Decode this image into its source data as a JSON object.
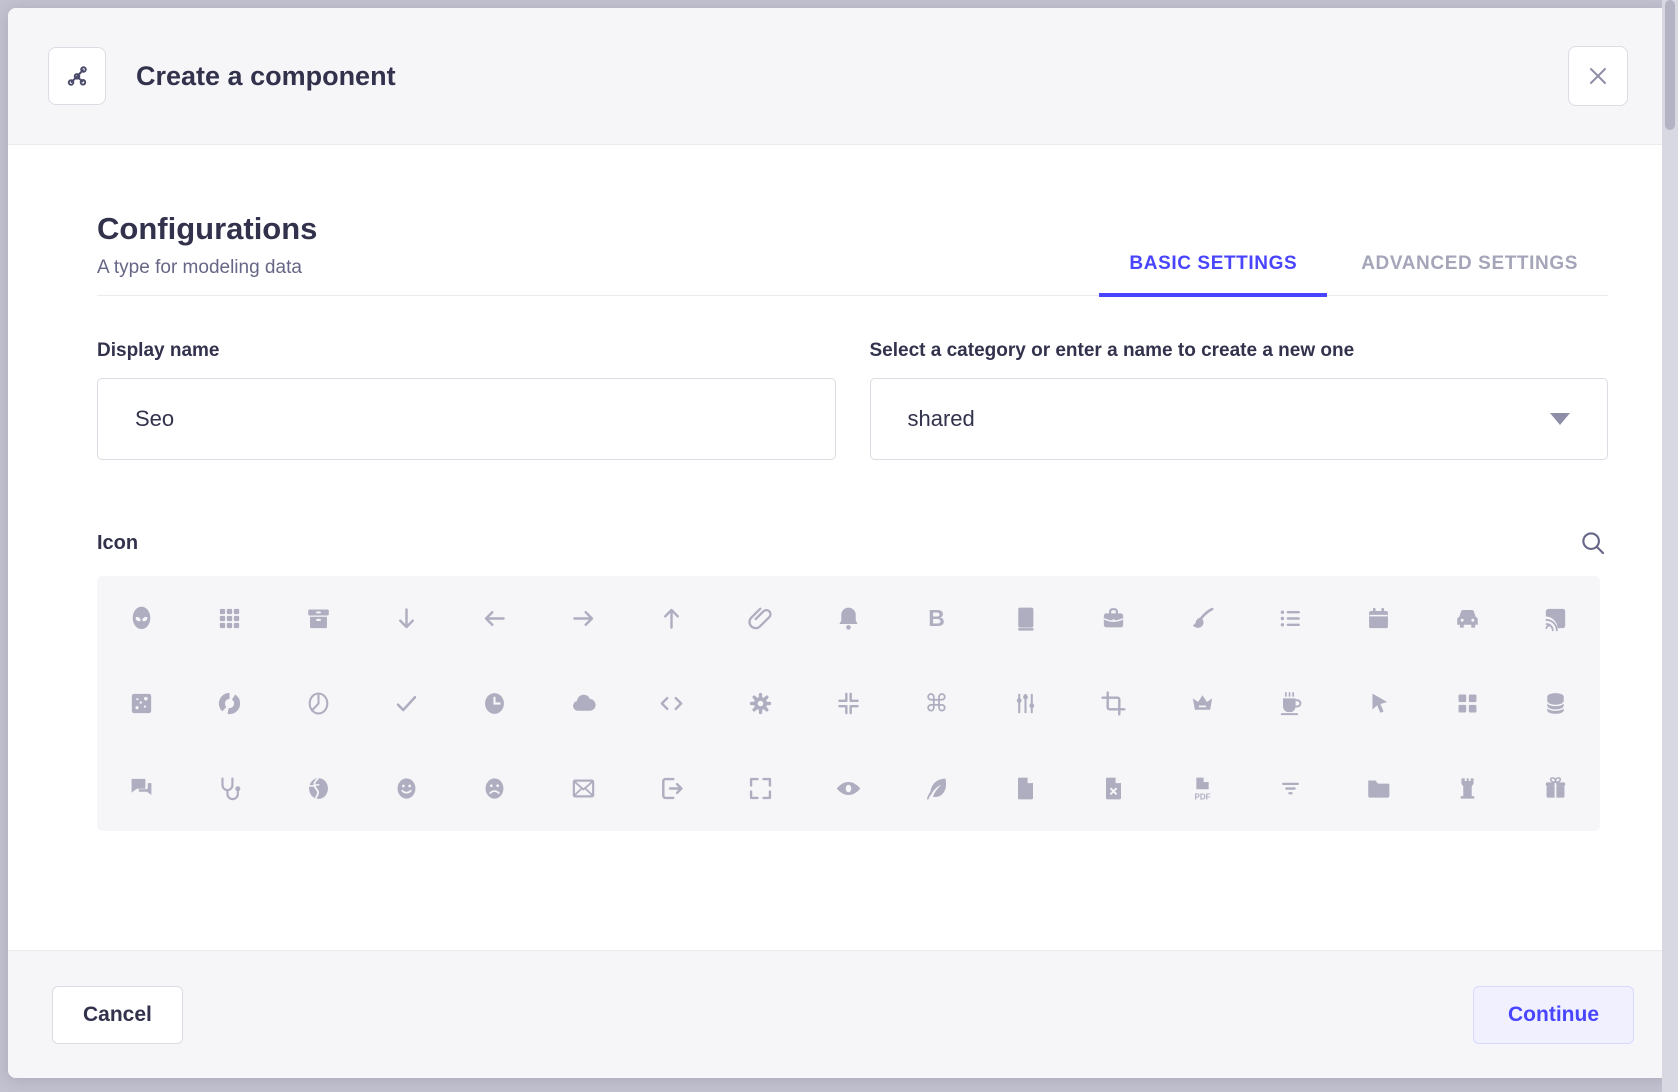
{
  "colors": {
    "primary": "#4945ff",
    "text_dark": "#32324d",
    "text_muted": "#666687",
    "tab_inactive": "#a5a5ba",
    "icon_gray": "#aeaec0",
    "panel_bg": "#f6f6f9",
    "border": "#dcdce4",
    "continue_bg": "#f0f0ff",
    "continue_border": "#d9d8ff"
  },
  "modal": {
    "header": {
      "title": "Create a component",
      "icon": "component-icon",
      "close_icon": "close-icon"
    },
    "section": {
      "title": "Configurations",
      "subtitle": "A type for modeling data"
    },
    "tabs": [
      {
        "label": "BASIC SETTINGS",
        "active": true
      },
      {
        "label": "ADVANCED SETTINGS",
        "active": false
      }
    ],
    "form": {
      "display_name": {
        "label": "Display name",
        "value": "Seo"
      },
      "category": {
        "label": "Select a category or enter a name to create a new one",
        "value": "shared"
      }
    },
    "icon_picker": {
      "label": "Icon",
      "search_icon": "search-icon",
      "rows": [
        [
          "alien",
          "apps",
          "archive",
          "arrow-down",
          "arrow-left",
          "arrow-right",
          "arrow-up",
          "attachment",
          "bell",
          "bold",
          "book",
          "briefcase",
          "brush",
          "bullet-list",
          "calendar",
          "car",
          "cast"
        ],
        [
          "chart-bubble",
          "chart-circle",
          "chart-pie",
          "check",
          "clock",
          "cloud",
          "code",
          "cog",
          "collapse",
          "command",
          "connector",
          "crop",
          "crown",
          "cup",
          "cursor",
          "dashboard",
          "database"
        ],
        [
          "discuss",
          "doctor",
          "earth",
          "emotion-happy",
          "emotion-unhappy",
          "envelop",
          "exit",
          "expand",
          "eye",
          "feather",
          "file",
          "file-error",
          "file-pdf",
          "filter",
          "folder",
          "gate",
          "gift"
        ]
      ]
    },
    "footer": {
      "cancel_label": "Cancel",
      "continue_label": "Continue"
    }
  }
}
